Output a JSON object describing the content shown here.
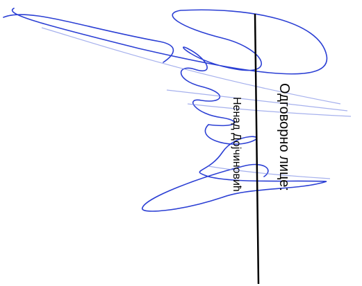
{
  "signature_block": {
    "label": "Одговорно лице:",
    "name": "Ненад Дојчиновић"
  }
}
